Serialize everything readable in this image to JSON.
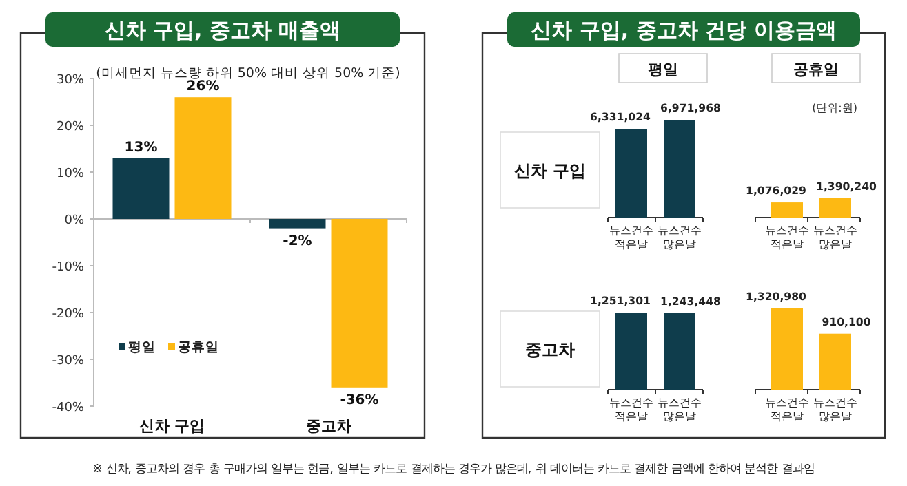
{
  "chart_data": [
    {
      "type": "bar",
      "title": "신차 구입, 중고차 매출액",
      "subtitle": "(미세먼지 뉴스량 하위 50% 대비 상위 50% 기준)",
      "categories": [
        "신차 구입",
        "중고차"
      ],
      "series": [
        {
          "name": "평일",
          "color": "#0f3d4c",
          "values": [
            13,
            -2
          ],
          "value_labels": [
            "13%",
            "-2%"
          ]
        },
        {
          "name": "공휴일",
          "color": "#fdb913",
          "values": [
            26,
            -36
          ],
          "value_labels": [
            "26%",
            "-36%"
          ]
        }
      ],
      "ylim": [
        -40,
        30
      ],
      "yticks": [
        {
          "value": 30,
          "label": "30%"
        },
        {
          "value": 20,
          "label": "20%"
        },
        {
          "value": 10,
          "label": "10%"
        },
        {
          "value": 0,
          "label": "0%"
        },
        {
          "value": -10,
          "label": "-10%"
        },
        {
          "value": -20,
          "label": "-20%"
        },
        {
          "value": -30,
          "label": "-30%"
        },
        {
          "value": -40,
          "label": "-40%"
        }
      ],
      "legend": "bottom left"
    },
    {
      "type": "other",
      "title": "신차 구입, 중고차 건당 이용금액",
      "annotations": [
        "평일",
        "공휴일",
        "(단위:원)",
        "※ 신차, 중고차의 경우 총 구매가의 일부는 현금, 일부는 카드로 결제하는 경우가 많은데, 위 데이터는 카드로 결제한 금액에 한하여 분석한 결과임"
      ]
    },
    {
      "type": "bar",
      "title": "신차 구입",
      "categories": [
        "뉴스건수 적은날",
        "뉴스건수 많은날",
        "뉴스건수 적은날",
        "뉴스건수 많은날"
      ],
      "values": [
        6331024,
        6971968,
        1076029,
        1390240
      ],
      "colors": [
        "#0f3d4c",
        "#0f3d4c",
        "#fdb913",
        "#fdb913"
      ],
      "value_labels": [
        "6,331,024",
        "6,971,968",
        "1,076,029",
        "1,390,240"
      ]
    },
    {
      "type": "bar",
      "title": "중고차",
      "categories": [
        "뉴스건수 적은날",
        "뉴스건수 많은날",
        "뉴스건수 적은날",
        "뉴스건수 많은날"
      ],
      "values": [
        1251301,
        1243448,
        1320980,
        910100
      ],
      "colors": [
        "#0f3d4c",
        "#0f3d4c",
        "#fdb913",
        "#fdb913"
      ],
      "value_labels": [
        "1,251,301",
        "1,243,448",
        "1,320,980",
        "910,100"
      ]
    }
  ]
}
